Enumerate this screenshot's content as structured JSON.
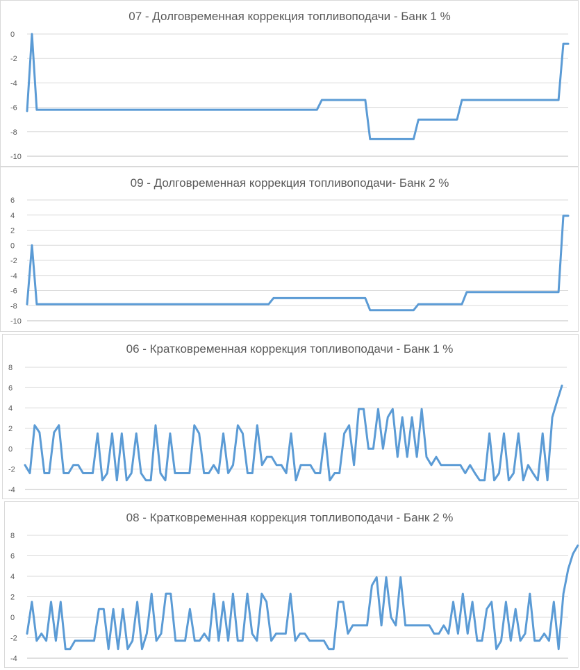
{
  "charts": [
    {
      "type": "line",
      "title": "07 - Долговременная коррекция топливоподачи - Банк 1 %",
      "ylim": [
        -10,
        0
      ],
      "yticks": [
        0,
        -2,
        -4,
        -6,
        -8,
        -10
      ],
      "ytick_labels": [
        "0",
        "-2",
        "-4",
        "-6",
        "-8",
        "-10"
      ],
      "grid": true,
      "legend": "none",
      "color": "#5b9bd5",
      "points": [
        [
          0,
          -6.3
        ],
        [
          1,
          0
        ],
        [
          2,
          -6.2
        ],
        [
          60,
          -6.2
        ],
        [
          61,
          -5.4
        ],
        [
          70,
          -5.4
        ],
        [
          71,
          -8.6
        ],
        [
          80,
          -8.6
        ],
        [
          81,
          -7.0
        ],
        [
          89,
          -7.0
        ],
        [
          90,
          -5.4
        ],
        [
          110,
          -5.4
        ],
        [
          111,
          -0.8
        ],
        [
          112,
          -0.8
        ]
      ]
    },
    {
      "type": "line",
      "title": "09 - Долговременная коррекция топливоподачи- Банк 2 %",
      "ylim": [
        -10,
        6
      ],
      "yticks": [
        6,
        4,
        2,
        0,
        -2,
        -4,
        -6,
        -8,
        -10
      ],
      "ytick_labels": [
        "6",
        "4",
        "2",
        "0",
        "-2",
        "-4",
        "-6",
        "-8",
        "-10"
      ],
      "grid": true,
      "legend": "none",
      "color": "#5b9bd5",
      "points": [
        [
          0,
          -7.8
        ],
        [
          1,
          0
        ],
        [
          2,
          -7.8
        ],
        [
          50,
          -7.8
        ],
        [
          51,
          -7.0
        ],
        [
          70,
          -7.0
        ],
        [
          71,
          -8.6
        ],
        [
          80,
          -8.6
        ],
        [
          81,
          -7.8
        ],
        [
          90,
          -7.8
        ],
        [
          91,
          -6.2
        ],
        [
          110,
          -6.2
        ],
        [
          111,
          3.9
        ],
        [
          112,
          3.9
        ]
      ]
    },
    {
      "type": "line",
      "title": "06 - Кратковременная коррекция топливоподачи - Банк 1 %",
      "ylim": [
        -4,
        8
      ],
      "yticks": [
        8,
        6,
        4,
        2,
        0,
        -2,
        -4
      ],
      "ytick_labels": [
        "8",
        "6",
        "4",
        "2",
        "0",
        "-2",
        "-4"
      ],
      "grid": true,
      "legend": "none",
      "color": "#5b9bd5",
      "values": [
        -1.6,
        -2.4,
        2.3,
        1.6,
        -2.4,
        -2.4,
        1.6,
        2.3,
        -2.4,
        -2.4,
        -1.6,
        -1.6,
        -2.4,
        -2.4,
        -2.4,
        1.5,
        -3.1,
        -2.4,
        1.5,
        -3.1,
        1.5,
        -3.1,
        -2.4,
        1.5,
        -2.4,
        -3.1,
        -3.1,
        2.3,
        -2.4,
        -3.1,
        1.5,
        -2.4,
        -2.4,
        -2.4,
        -2.4,
        2.3,
        1.5,
        -2.4,
        -2.4,
        -1.6,
        -2.4,
        1.5,
        -2.4,
        -1.6,
        2.3,
        1.5,
        -2.4,
        -2.4,
        2.3,
        -1.6,
        -0.8,
        -0.8,
        -1.6,
        -1.6,
        -2.4,
        1.5,
        -3.1,
        -1.6,
        -1.6,
        -1.6,
        -2.4,
        -2.4,
        1.5,
        -3.1,
        -2.4,
        -2.4,
        1.5,
        2.3,
        -1.6,
        3.9,
        3.9,
        0.0,
        0.0,
        3.9,
        0.0,
        3.1,
        3.9,
        -0.8,
        3.1,
        -0.8,
        3.1,
        -0.8,
        3.9,
        -0.8,
        -1.6,
        -0.8,
        -1.6,
        -1.6,
        -1.6,
        -1.6,
        -1.6,
        -2.4,
        -1.6,
        -2.4,
        -3.1,
        -3.1,
        1.5,
        -3.1,
        -2.4,
        1.5,
        -3.1,
        -2.4,
        1.5,
        -3.1,
        -1.6,
        -2.4,
        -3.1,
        1.5,
        -3.1,
        3.1,
        4.7,
        6.2
      ]
    },
    {
      "type": "line",
      "title": "08 - Кратковременная коррекция топливоподачи - Банк 2 %",
      "ylim": [
        -4,
        8
      ],
      "yticks": [
        8,
        6,
        4,
        2,
        0,
        -2,
        -4
      ],
      "ytick_labels": [
        "8",
        "6",
        "4",
        "2",
        "0",
        "-2",
        "-4"
      ],
      "grid": true,
      "legend": "none",
      "color": "#5b9bd5",
      "values": [
        -1.6,
        1.5,
        -2.3,
        -1.6,
        -2.3,
        1.5,
        -2.3,
        1.5,
        -3.1,
        -3.1,
        -2.3,
        -2.3,
        -2.3,
        -2.3,
        -2.3,
        0.8,
        0.8,
        -3.1,
        0.8,
        -3.1,
        0.8,
        -3.1,
        -2.3,
        1.5,
        -3.1,
        -1.6,
        2.3,
        -2.3,
        -1.6,
        2.3,
        2.3,
        -2.3,
        -2.3,
        -2.3,
        0.8,
        -2.3,
        -2.3,
        -1.6,
        -2.3,
        2.3,
        -2.3,
        1.5,
        -2.3,
        2.3,
        -2.3,
        -2.3,
        2.3,
        -1.6,
        -2.3,
        2.3,
        1.5,
        -2.3,
        -1.6,
        -1.6,
        -1.6,
        2.3,
        -2.3,
        -1.6,
        -1.6,
        -2.3,
        -2.3,
        -2.3,
        -2.3,
        -3.1,
        -3.1,
        1.5,
        1.5,
        -1.6,
        -0.8,
        -0.8,
        -0.8,
        -0.8,
        3.1,
        3.9,
        -0.8,
        3.9,
        0.0,
        -0.8,
        3.9,
        -0.8,
        -0.8,
        -0.8,
        -0.8,
        -0.8,
        -0.8,
        -1.6,
        -1.6,
        -0.8,
        -1.6,
        1.5,
        -1.6,
        2.3,
        -1.6,
        1.5,
        -2.3,
        -2.3,
        0.8,
        1.5,
        -3.1,
        -2.3,
        1.5,
        -2.3,
        0.8,
        -2.3,
        -1.6,
        2.3,
        -2.3,
        -2.3,
        -1.6,
        -2.3,
        1.5,
        -3.1,
        2.3,
        4.7,
        6.2,
        7.0
      ]
    }
  ]
}
